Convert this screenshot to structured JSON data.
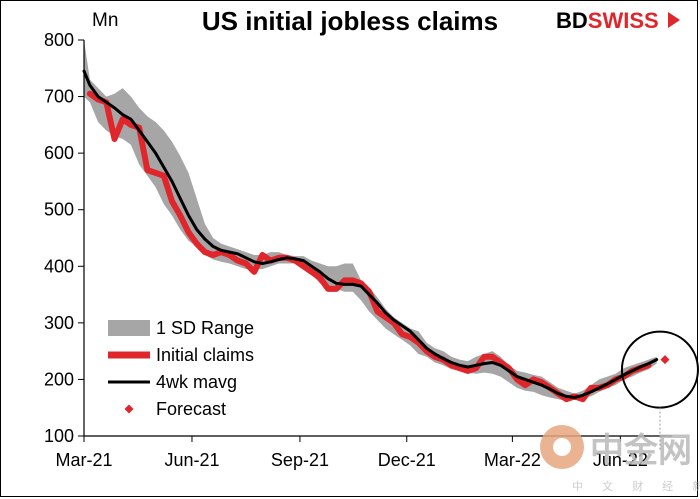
{
  "header": {
    "title": "US initial jobless claims",
    "unit": "Mn",
    "brand_left": "BD",
    "brand_right": "SWISS"
  },
  "watermark": {
    "main": "中金网",
    "sub": "中 文 财 经 新 媒 体"
  },
  "chart_data": {
    "type": "line",
    "title": "US initial jobless claims",
    "ylabel": "Mn",
    "xlabel": "",
    "ylim": [
      100,
      800
    ],
    "yticks": [
      100,
      200,
      300,
      400,
      500,
      600,
      700,
      800
    ],
    "x_tick_labels": [
      "Mar-21",
      "Jun-21",
      "Sep-21",
      "Dec-21",
      "Mar-22",
      "Jun-22"
    ],
    "x_tick_dates": [
      "2021-03-01",
      "2021-06-01",
      "2021-09-01",
      "2021-12-01",
      "2022-03-01",
      "2022-06-01"
    ],
    "x_start": "2021-03-01",
    "x_end": "2022-07-15",
    "legend_position": "lower-left",
    "colors": {
      "range": "#a6a6a6",
      "initial": "#e0262a",
      "mavg": "#000000",
      "forecast": "#e0262a"
    },
    "series": [
      {
        "name": "Initial claims",
        "x": [
          "2021-03-06",
          "2021-03-13",
          "2021-03-20",
          "2021-03-27",
          "2021-04-03",
          "2021-04-10",
          "2021-04-17",
          "2021-04-24",
          "2021-05-01",
          "2021-05-08",
          "2021-05-15",
          "2021-05-22",
          "2021-05-29",
          "2021-06-05",
          "2021-06-12",
          "2021-06-19",
          "2021-06-26",
          "2021-07-03",
          "2021-07-10",
          "2021-07-17",
          "2021-07-24",
          "2021-07-31",
          "2021-08-07",
          "2021-08-14",
          "2021-08-21",
          "2021-08-28",
          "2021-09-04",
          "2021-09-11",
          "2021-09-18",
          "2021-09-25",
          "2021-10-02",
          "2021-10-09",
          "2021-10-16",
          "2021-10-23",
          "2021-10-30",
          "2021-11-06",
          "2021-11-13",
          "2021-11-20",
          "2021-11-27",
          "2021-12-04",
          "2021-12-11",
          "2021-12-18",
          "2021-12-25",
          "2022-01-01",
          "2022-01-08",
          "2022-01-15",
          "2022-01-22",
          "2022-01-29",
          "2022-02-05",
          "2022-02-12",
          "2022-02-19",
          "2022-02-26",
          "2022-03-05",
          "2022-03-12",
          "2022-03-19",
          "2022-03-26",
          "2022-04-02",
          "2022-04-09",
          "2022-04-16",
          "2022-04-23",
          "2022-04-30",
          "2022-05-07",
          "2022-05-14",
          "2022-05-21",
          "2022-05-28",
          "2022-06-04",
          "2022-06-11",
          "2022-06-18",
          "2022-06-25"
        ],
        "values": [
          705,
          695,
          690,
          625,
          660,
          650,
          645,
          570,
          565,
          560,
          515,
          490,
          460,
          440,
          425,
          420,
          425,
          420,
          410,
          405,
          390,
          420,
          410,
          415,
          415,
          410,
          400,
          390,
          380,
          360,
          360,
          375,
          375,
          370,
          355,
          320,
          310,
          300,
          280,
          275,
          265,
          250,
          240,
          235,
          225,
          220,
          215,
          220,
          240,
          240,
          230,
          220,
          200,
          190,
          200,
          195,
          185,
          175,
          165,
          170,
          165,
          185,
          185,
          190,
          200,
          205,
          215,
          220,
          225
        ]
      },
      {
        "name": "4wk mavg",
        "x": [
          "2021-03-01",
          "2021-03-06",
          "2021-03-13",
          "2021-03-20",
          "2021-03-27",
          "2021-04-03",
          "2021-04-10",
          "2021-04-17",
          "2021-04-24",
          "2021-05-01",
          "2021-05-08",
          "2021-05-15",
          "2021-05-22",
          "2021-05-29",
          "2021-06-05",
          "2021-06-12",
          "2021-06-19",
          "2021-06-26",
          "2021-07-03",
          "2021-07-10",
          "2021-07-17",
          "2021-07-24",
          "2021-07-31",
          "2021-08-07",
          "2021-08-14",
          "2021-08-21",
          "2021-08-28",
          "2021-09-04",
          "2021-09-11",
          "2021-09-18",
          "2021-09-25",
          "2021-10-02",
          "2021-10-09",
          "2021-10-16",
          "2021-10-23",
          "2021-10-30",
          "2021-11-06",
          "2021-11-13",
          "2021-11-20",
          "2021-11-27",
          "2021-12-04",
          "2021-12-11",
          "2021-12-18",
          "2021-12-25",
          "2022-01-01",
          "2022-01-08",
          "2022-01-15",
          "2022-01-22",
          "2022-01-29",
          "2022-02-05",
          "2022-02-12",
          "2022-02-19",
          "2022-02-26",
          "2022-03-05",
          "2022-03-12",
          "2022-03-19",
          "2022-03-26",
          "2022-04-02",
          "2022-04-09",
          "2022-04-16",
          "2022-04-23",
          "2022-04-30",
          "2022-05-07",
          "2022-05-14",
          "2022-05-21",
          "2022-05-28",
          "2022-06-04",
          "2022-06-11",
          "2022-06-18",
          "2022-06-25",
          "2022-07-02"
        ],
        "values": [
          745,
          720,
          700,
          690,
          680,
          668,
          660,
          640,
          620,
          600,
          575,
          550,
          520,
          490,
          465,
          448,
          435,
          428,
          425,
          422,
          415,
          408,
          405,
          408,
          412,
          415,
          413,
          410,
          400,
          390,
          378,
          370,
          368,
          368,
          365,
          350,
          335,
          318,
          305,
          295,
          285,
          270,
          255,
          245,
          237,
          230,
          225,
          222,
          225,
          228,
          230,
          225,
          215,
          205,
          200,
          195,
          190,
          183,
          175,
          170,
          168,
          172,
          178,
          185,
          192,
          200,
          208,
          215,
          222,
          228,
          235
        ]
      },
      {
        "name": "1 SD Range",
        "x": [
          "2021-03-01",
          "2021-03-06",
          "2021-03-13",
          "2021-03-20",
          "2021-03-27",
          "2021-04-03",
          "2021-04-10",
          "2021-04-17",
          "2021-04-24",
          "2021-05-01",
          "2021-05-08",
          "2021-05-15",
          "2021-05-22",
          "2021-05-29",
          "2021-06-05",
          "2021-06-12",
          "2021-06-19",
          "2021-06-26",
          "2021-07-03",
          "2021-07-10",
          "2021-07-17",
          "2021-07-24",
          "2021-07-31",
          "2021-08-07",
          "2021-08-14",
          "2021-08-21",
          "2021-08-28",
          "2021-09-04",
          "2021-09-11",
          "2021-09-18",
          "2021-09-25",
          "2021-10-02",
          "2021-10-09",
          "2021-10-16",
          "2021-10-23",
          "2021-10-30",
          "2021-11-06",
          "2021-11-13",
          "2021-11-20",
          "2021-11-27",
          "2021-12-04",
          "2021-12-11",
          "2021-12-18",
          "2021-12-25",
          "2022-01-01",
          "2022-01-08",
          "2022-01-15",
          "2022-01-22",
          "2022-01-29",
          "2022-02-05",
          "2022-02-12",
          "2022-02-19",
          "2022-02-26",
          "2022-03-05",
          "2022-03-12",
          "2022-03-19",
          "2022-03-26",
          "2022-04-02",
          "2022-04-09",
          "2022-04-16",
          "2022-04-23",
          "2022-04-30",
          "2022-05-07",
          "2022-05-14",
          "2022-05-21",
          "2022-05-28",
          "2022-06-04",
          "2022-06-11",
          "2022-06-18",
          "2022-06-25",
          "2022-07-02"
        ],
        "upper": [
          800,
          730,
          715,
          700,
          705,
          715,
          700,
          680,
          665,
          655,
          640,
          620,
          595,
          565,
          520,
          475,
          450,
          440,
          435,
          430,
          425,
          420,
          420,
          425,
          425,
          420,
          418,
          418,
          410,
          405,
          400,
          400,
          405,
          405,
          375,
          362,
          345,
          325,
          310,
          300,
          290,
          285,
          265,
          255,
          250,
          240,
          235,
          232,
          240,
          245,
          250,
          240,
          225,
          215,
          212,
          208,
          205,
          195,
          185,
          180,
          175,
          180,
          190,
          200,
          205,
          210,
          220,
          225,
          230,
          235,
          240
        ],
        "lower": [
          700,
          690,
          655,
          640,
          630,
          625,
          615,
          580,
          560,
          540,
          510,
          490,
          465,
          445,
          435,
          420,
          412,
          408,
          405,
          400,
          395,
          395,
          395,
          400,
          405,
          405,
          405,
          400,
          385,
          370,
          360,
          360,
          355,
          355,
          340,
          320,
          305,
          290,
          280,
          270,
          260,
          245,
          240,
          230,
          225,
          218,
          215,
          212,
          210,
          212,
          210,
          205,
          195,
          185,
          180,
          178,
          172,
          168,
          165,
          162,
          165,
          168,
          170,
          178,
          185,
          190,
          200,
          205,
          212,
          218,
          228
        ]
      },
      {
        "name": "Forecast",
        "x": [
          "2022-07-09"
        ],
        "values": [
          235
        ]
      }
    ],
    "annotation": "circle around latest data and forecast"
  }
}
